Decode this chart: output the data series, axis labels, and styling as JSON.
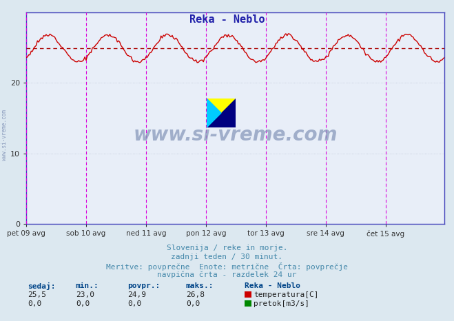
{
  "title": "Reka - Neblo",
  "title_color": "#2222aa",
  "bg_color": "#dce8f0",
  "plot_bg_color": "#e8eef8",
  "grid_color": "#c0c8d8",
  "x_labels": [
    "pet 09 avg",
    "sob 10 avg",
    "ned 11 avg",
    "pon 12 avg",
    "tor 13 avg",
    "sre 14 avg",
    "čet 15 avg"
  ],
  "x_ticks_positions": [
    0,
    48,
    96,
    144,
    192,
    240,
    288
  ],
  "num_points": 336,
  "temp_min": 23.0,
  "temp_max": 26.8,
  "temp_avg": 24.9,
  "temp_current": 25.5,
  "y_ticks": [
    0,
    10,
    20
  ],
  "y_max": 30,
  "avg_line_color": "#aa0000",
  "temp_line_color": "#cc0000",
  "vline_color": "#dd00dd",
  "watermark": "www.si-vreme.com",
  "footer_line1": "Slovenija / reke in morje.",
  "footer_line2": "zadnji teden / 30 minut.",
  "footer_line3": "Meritve: povprečne  Enote: metrične  Črta: povprečje",
  "footer_line4": "navpična črta - razdelek 24 ur",
  "label_sedaj": "sedaj:",
  "label_min": "min.:",
  "label_povpr": "povpr.:",
  "label_maks": "maks.:",
  "legend_title": "Reka - Neblo",
  "legend_temp": "temperatura[C]",
  "legend_pretok": "pretok[m3/s]",
  "temp_color_box": "#cc0000",
  "pretok_color_box": "#008800",
  "text_color": "#004488",
  "footer_color": "#4488aa",
  "axis_color": "#4444bb",
  "yaxis_color": "#4444bb"
}
